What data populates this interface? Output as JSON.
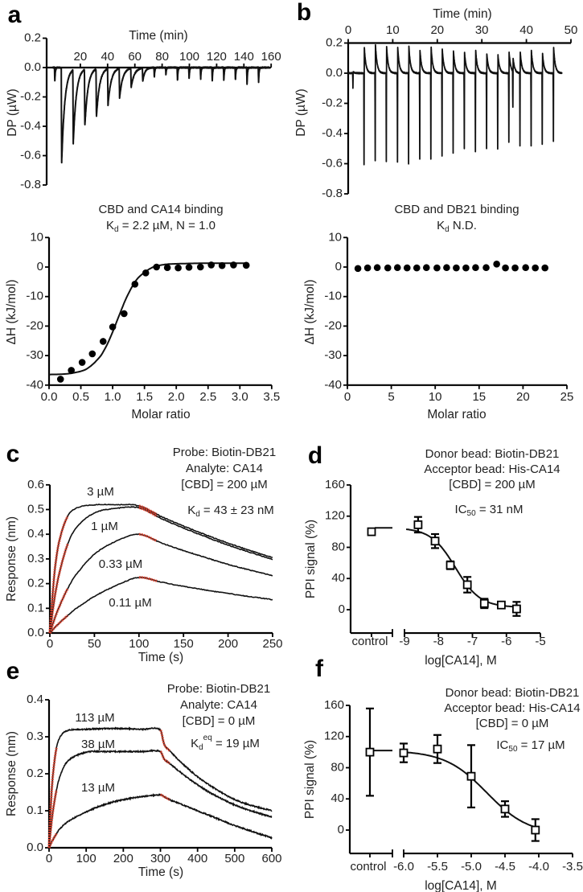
{
  "colors": {
    "trace": "#111111",
    "fit_overlay": "#e8412c"
  },
  "chart_data": [
    {
      "id": "a_raw",
      "panel": "a",
      "type": "line",
      "xlabel": "Time (min)",
      "ylabel": "DP (µW)",
      "xlim": [
        0,
        160
      ],
      "ylim": [
        -0.8,
        0.2
      ],
      "xticks": [
        20,
        40,
        60,
        80,
        100,
        120,
        140,
        160
      ],
      "xtick_labels": [
        "20",
        "40",
        "60",
        "80",
        "100",
        "120",
        "140",
        "160"
      ],
      "yticks": [
        0.2,
        0,
        -0.2,
        -0.4,
        -0.6,
        -0.8
      ],
      "ytick_labels": [
        "0.2",
        "0.0",
        "-0.2",
        "-0.4",
        "-0.6",
        "-0.8"
      ],
      "injections": [
        {
          "t": 1,
          "peak": -0.1
        },
        {
          "t": 6,
          "peak": -0.65
        },
        {
          "t": 14.5,
          "peak": -0.5
        },
        {
          "t": 23,
          "peak": -0.39
        },
        {
          "t": 31.5,
          "peak": -0.33
        },
        {
          "t": 40,
          "peak": -0.25
        },
        {
          "t": 48.5,
          "peak": -0.2
        },
        {
          "t": 57,
          "peak": -0.13
        },
        {
          "t": 65.5,
          "peak": -0.09
        },
        {
          "t": 74,
          "peak": -0.07
        },
        {
          "t": 82.5,
          "peak": -0.05
        },
        {
          "t": 91,
          "peak": -0.09
        },
        {
          "t": 99.5,
          "peak": -0.08
        },
        {
          "t": 108,
          "peak": -0.08
        },
        {
          "t": 116.5,
          "peak": -0.09
        },
        {
          "t": 125,
          "peak": -0.09
        },
        {
          "t": 133.5,
          "peak": -0.09
        },
        {
          "t": 142,
          "peak": -0.12
        },
        {
          "t": 150.5,
          "peak": -0.1
        }
      ]
    },
    {
      "id": "b_raw",
      "panel": "b",
      "type": "line",
      "xlabel": "Time (min)",
      "ylabel": "DP (µW)",
      "xlim": [
        0,
        50
      ],
      "ylim": [
        -0.8,
        0.2
      ],
      "xticks": [
        0,
        10,
        20,
        30,
        40,
        50
      ],
      "xtick_labels": [
        "0",
        "10",
        "20",
        "30",
        "40",
        "50"
      ],
      "yticks": [
        0.2,
        0,
        -0.2,
        -0.4,
        -0.6,
        -0.8
      ],
      "ytick_labels": [
        "0.2",
        "0.0",
        "-0.2",
        "-0.4",
        "-0.6",
        "-0.8"
      ],
      "injections": [
        {
          "t": 1,
          "neg": -0.1,
          "pos": 0.01
        },
        {
          "t": 3.5,
          "neg": -0.61,
          "pos": 0.17
        },
        {
          "t": 6,
          "neg": -0.58,
          "pos": 0.19
        },
        {
          "t": 8.5,
          "neg": -0.59,
          "pos": 0.18
        },
        {
          "t": 11,
          "neg": -0.59,
          "pos": 0.17
        },
        {
          "t": 13.5,
          "neg": -0.6,
          "pos": 0.18
        },
        {
          "t": 16,
          "neg": -0.57,
          "pos": 0.15
        },
        {
          "t": 18.5,
          "neg": -0.57,
          "pos": 0.17
        },
        {
          "t": 21,
          "neg": -0.55,
          "pos": 0.16
        },
        {
          "t": 23.5,
          "neg": -0.53,
          "pos": 0.15
        },
        {
          "t": 26,
          "neg": -0.5,
          "pos": 0.14
        },
        {
          "t": 28.5,
          "neg": -0.52,
          "pos": 0.15
        },
        {
          "t": 31,
          "neg": -0.5,
          "pos": 0.13
        },
        {
          "t": 33.5,
          "neg": -0.5,
          "pos": 0.12
        },
        {
          "t": 36,
          "neg": -0.46,
          "pos": 0.14
        },
        {
          "t": 36.9,
          "neg": -0.24,
          "pos": 0.09
        },
        {
          "t": 38.5,
          "neg": -0.48,
          "pos": 0.14
        },
        {
          "t": 41,
          "neg": -0.48,
          "pos": 0.15
        },
        {
          "t": 43.5,
          "neg": -0.47,
          "pos": 0.13
        },
        {
          "t": 46,
          "neg": -0.45,
          "pos": 0.17
        }
      ]
    },
    {
      "id": "a_iso",
      "panel": "a",
      "type": "scatter",
      "title": "CBD and CA14 binding",
      "subtitle": {
        "k": "K",
        "sub": "d",
        "rest": " = 2.2 µM, N = 1.0"
      },
      "xlabel": "Molar ratio",
      "ylabel": "ΔH (kJ/mol)",
      "xlim": [
        0,
        3.5
      ],
      "ylim": [
        -40,
        10
      ],
      "xticks": [
        0,
        0.5,
        1,
        1.5,
        2,
        2.5,
        3,
        3.5
      ],
      "xtick_labels": [
        "0.0",
        "0.5",
        "1.0",
        "1.5",
        "2.0",
        "2.5",
        "3.0",
        "3.5"
      ],
      "yticks": [
        10,
        0,
        -10,
        -20,
        -30,
        -40
      ],
      "ytick_labels": [
        "10",
        "0",
        "-10",
        "-20",
        "-30",
        "-40"
      ],
      "x": [
        0.18,
        0.35,
        0.52,
        0.68,
        0.85,
        1.0,
        1.18,
        1.35,
        1.52,
        1.69,
        1.86,
        2.03,
        2.2,
        2.38,
        2.55,
        2.72,
        2.9,
        3.1
      ],
      "y": [
        -38,
        -35,
        -32.3,
        -29.4,
        -25.2,
        -20.3,
        -15.8,
        -5.8,
        -2,
        0,
        -0.2,
        -0.3,
        -0.1,
        0,
        0.7,
        0.5,
        0.7,
        0.6
      ],
      "fit": {
        "x": [
          0,
          0.2,
          0.4,
          0.6,
          0.8,
          0.9,
          1.0,
          1.1,
          1.2,
          1.3,
          1.4,
          1.6,
          1.8,
          2.0,
          2.5,
          3.1
        ],
        "y": [
          -36.4,
          -36.3,
          -35.8,
          -34.4,
          -30.4,
          -26.8,
          -22.0,
          -16.5,
          -11.2,
          -6.9,
          -3.7,
          -0.4,
          0.8,
          1.1,
          1.3,
          1.3
        ]
      }
    },
    {
      "id": "b_iso",
      "panel": "b",
      "type": "scatter",
      "title": "CBD and DB21 binding",
      "subtitle": {
        "k": "K",
        "sub": "d",
        "rest": "  N.D."
      },
      "xlabel": "Molar ratio",
      "ylabel": "ΔH (kJ/mol)",
      "xlim": [
        0,
        25
      ],
      "ylim": [
        -40,
        10
      ],
      "xticks": [
        0,
        5,
        10,
        15,
        20,
        25
      ],
      "xtick_labels": [
        "0",
        "5",
        "10",
        "15",
        "20",
        "25"
      ],
      "yticks": [
        10,
        0,
        -10,
        -20,
        -30,
        -40
      ],
      "ytick_labels": [
        "10",
        "0",
        "-10",
        "-20",
        "-30",
        "-40"
      ],
      "x": [
        1.2,
        2.3,
        3.4,
        4.6,
        5.7,
        6.8,
        7.9,
        9.0,
        10.2,
        11.3,
        12.4,
        13.5,
        14.6,
        15.8,
        17.0,
        18.0,
        19.1,
        20.3,
        21.4,
        22.5
      ],
      "y": [
        -0.5,
        -0.3,
        -0.2,
        -0.3,
        -0.2,
        -0.3,
        -0.3,
        -0.2,
        -0.3,
        -0.2,
        -0.3,
        -0.3,
        -0.2,
        -0.2,
        1.0,
        -0.3,
        -0.3,
        -0.2,
        -0.3,
        -0.3
      ]
    },
    {
      "id": "c",
      "panel": "c",
      "type": "line",
      "xlabel": "Time (s)",
      "ylabel": "Response (nm)",
      "xlim": [
        0,
        250
      ],
      "ylim": [
        0,
        0.6
      ],
      "xticks": [
        0,
        50,
        100,
        150,
        200,
        250
      ],
      "xtick_labels": [
        "0",
        "50",
        "100",
        "150",
        "200",
        "250"
      ],
      "yticks": [
        0,
        0.1,
        0.2,
        0.3,
        0.4,
        0.5,
        0.6
      ],
      "ytick_labels": [
        "0.0",
        "0.1",
        "0.2",
        "0.3",
        "0.4",
        "0.5",
        "0.6"
      ],
      "annotations": [
        "Probe: Biotin-DB21",
        "Analyte: CA14",
        "[CBD] = 200 µM"
      ],
      "kd": {
        "k": "K",
        "sub": "d",
        "rest": " = 43 ± 23 nM"
      },
      "fit_ranges": [
        [
          0,
          20
        ],
        [
          100,
          120
        ]
      ],
      "x": [
        0,
        5,
        10,
        20,
        30,
        50,
        75,
        100,
        125,
        150,
        200,
        250
      ],
      "series": [
        {
          "name": "3 µM",
          "values": [
            0,
            0.235,
            0.363,
            0.473,
            0.506,
            0.519,
            0.52,
            0.515,
            0.472,
            0.433,
            0.364,
            0.305
          ]
        },
        {
          "name": "1 µM",
          "values": [
            0,
            0.134,
            0.233,
            0.36,
            0.428,
            0.486,
            0.505,
            0.507,
            0.464,
            0.425,
            0.356,
            0.298
          ]
        },
        {
          "name": "0.33 µM",
          "values": [
            0,
            0.054,
            0.102,
            0.18,
            0.239,
            0.319,
            0.373,
            0.4,
            0.365,
            0.334,
            0.278,
            0.232
          ]
        },
        {
          "name": "0.11 µM",
          "values": [
            0,
            0.02,
            0.038,
            0.071,
            0.1,
            0.148,
            0.193,
            0.225,
            0.206,
            0.189,
            0.16,
            0.135
          ]
        }
      ]
    },
    {
      "id": "d",
      "panel": "d",
      "type": "scatter",
      "xlabel": "log[CA14], M",
      "ylabel": "PPI signal (%)",
      "xlim": [
        -9,
        -5
      ],
      "ylim": [
        -30,
        160
      ],
      "xticks": [
        -9,
        -8,
        -7,
        -6,
        -5
      ],
      "xtick_labels": [
        "-9",
        "-8",
        "-7",
        "-6",
        "-5"
      ],
      "control_label": "control",
      "yticks": [
        0,
        40,
        80,
        120,
        160
      ],
      "ytick_labels": [
        "0",
        "40",
        "80",
        "120",
        "160"
      ],
      "annotations": [
        "Donor bead: Biotin-DB21",
        "Acceptor bead: His-CA14",
        "[CBD] = 200 µM"
      ],
      "ic50": {
        "k": "IC",
        "sub": "50",
        "rest": " = 31 nM"
      },
      "control": {
        "y": 100,
        "err": 2
      },
      "x": [
        -8.6,
        -8.1,
        -7.65,
        -7.15,
        -6.65,
        -6.15,
        -5.7
      ],
      "y": [
        109,
        88,
        57,
        32,
        8,
        6,
        1
      ],
      "err": [
        10,
        9,
        5,
        10,
        6,
        2,
        9
      ],
      "fit": {
        "top": 105,
        "bottom": 3,
        "logIC50": -7.5,
        "hill": 1.2,
        "range": [
          -8.95,
          -5.7
        ]
      }
    },
    {
      "id": "e",
      "panel": "e",
      "type": "line",
      "xlabel": "Time (s)",
      "ylabel": "Response (nm)",
      "xlim": [
        0,
        600
      ],
      "ylim": [
        0,
        0.4
      ],
      "xticks": [
        0,
        100,
        200,
        300,
        400,
        500,
        600
      ],
      "xtick_labels": [
        "0",
        "100",
        "200",
        "300",
        "400",
        "500",
        "600"
      ],
      "yticks": [
        0,
        0.1,
        0.2,
        0.3,
        0.4
      ],
      "ytick_labels": [
        "0.0",
        "0.1",
        "0.2",
        "0.3",
        "0.4"
      ],
      "annotations": [
        "Probe: Biotin-DB21",
        "Analyte: CA14",
        "[CBD] = 0 µM"
      ],
      "kd": {
        "k": "K",
        "sub": "d",
        "sup": "eq",
        "rest": " = 19 µM"
      },
      "fit_ranges": [
        [
          0,
          20
        ],
        [
          300,
          325
        ]
      ],
      "x": [
        0,
        5,
        10,
        20,
        30,
        50,
        100,
        150,
        200,
        250,
        300,
        310,
        325,
        350,
        400,
        450,
        500,
        550,
        600
      ],
      "series": [
        {
          "name": "113 µM",
          "values": [
            0,
            0.118,
            0.192,
            0.27,
            0.3,
            0.317,
            0.32,
            0.322,
            0.322,
            0.32,
            0.318,
            0.28,
            0.262,
            0.236,
            0.192,
            0.158,
            0.13,
            0.113,
            0.1
          ]
        },
        {
          "name": "38 µM",
          "values": [
            0,
            0.053,
            0.096,
            0.156,
            0.195,
            0.234,
            0.258,
            0.26,
            0.26,
            0.26,
            0.26,
            0.24,
            0.228,
            0.207,
            0.17,
            0.14,
            0.116,
            0.098,
            0.083
          ]
        },
        {
          "name": "13 µM",
          "values": [
            0,
            0.011,
            0.021,
            0.038,
            0.052,
            0.07,
            0.097,
            0.117,
            0.13,
            0.138,
            0.143,
            0.138,
            0.13,
            0.12,
            0.1,
            0.08,
            0.06,
            0.043,
            0.027
          ]
        }
      ]
    },
    {
      "id": "f",
      "panel": "f",
      "type": "scatter",
      "xlabel": "log[CA14], M",
      "ylabel": "PPI signal (%)",
      "xlim": [
        -6,
        -3.5
      ],
      "ylim": [
        -30,
        160
      ],
      "xticks": [
        -6,
        -5.5,
        -5,
        -4.5,
        -4,
        -3.5
      ],
      "xtick_labels": [
        "-6.0",
        "-5.5",
        "-5.0",
        "-4.5",
        "-4.0",
        "-3.5"
      ],
      "control_label": "control",
      "yticks": [
        0,
        40,
        80,
        120,
        160
      ],
      "ytick_labels": [
        "0",
        "40",
        "80",
        "120",
        "160"
      ],
      "annotations": [
        "Donor bead: Biotin-DB21",
        "Acceptor bead: His-CA14",
        "[CBD] = 0 µM"
      ],
      "ic50": {
        "k": "IC",
        "sub": "50",
        "rest": " = 17 µM"
      },
      "control": {
        "y": 100,
        "err": 56
      },
      "x": [
        -6.0,
        -5.5,
        -5.0,
        -4.5,
        -4.05
      ],
      "y": [
        99,
        104,
        69,
        27,
        0
      ],
      "err": [
        12,
        18,
        40,
        10,
        14
      ],
      "fit": {
        "top": 102,
        "bottom": -6,
        "logIC50": -4.77,
        "hill": 1.4,
        "range": [
          -6.0,
          -4.05
        ]
      }
    }
  ]
}
